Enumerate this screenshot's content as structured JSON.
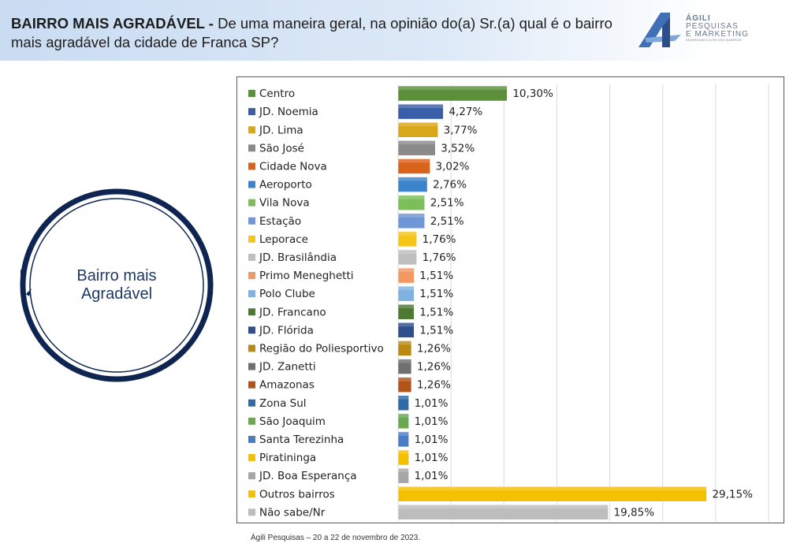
{
  "header": {
    "title_bold": "BAIRRO MAIS AGRADÁVEL -",
    "title_rest": "De uma maneira geral, na opinião do(a) Sr.(a) qual é o bairro mais agradável da cidade de Franca SP?"
  },
  "logo": {
    "line1": "ÁGILI",
    "line2": "PESQUISAS",
    "line3": "E MARKETING",
    "tagline": "ENXERGANDO ALÉM DOS NÚMEROS"
  },
  "circle": {
    "label": "Bairro mais Agradável"
  },
  "footer": {
    "text": "Ágili Pesquisas – 20 a 22 de novembro de 2023."
  },
  "chart_data": {
    "type": "bar",
    "orientation": "horizontal",
    "title": "",
    "xlabel": "",
    "ylabel": "",
    "xlim": [
      0,
      35
    ],
    "grid": true,
    "legend_position": "left",
    "value_suffix": "%",
    "categories": [
      "Centro",
      "JD. Noemia",
      "JD. Lima",
      "São José",
      "Cidade Nova",
      "Aeroporto",
      "Vila Nova",
      "Estação",
      "Leporace",
      "JD. Brasilândia",
      "Primo Meneghetti",
      "Polo Clube",
      "JD. Francano",
      "JD. Flórida",
      "Região do Poliesportivo",
      "JD. Zanetti",
      "Amazonas",
      "Zona Sul",
      "São Joaquim",
      "Santa Terezinha",
      "Piratininga",
      "JD. Boa Esperança",
      "Outros bairros",
      "Não sabe/Nr"
    ],
    "values": [
      10.3,
      4.27,
      3.77,
      3.52,
      3.02,
      2.76,
      2.51,
      2.51,
      1.76,
      1.76,
      1.51,
      1.51,
      1.51,
      1.51,
      1.26,
      1.26,
      1.26,
      1.01,
      1.01,
      1.01,
      1.01,
      1.01,
      29.15,
      19.85
    ],
    "labels": [
      "10,30%",
      "4,27%",
      "3,77%",
      "3,52%",
      "3,02%",
      "2,76%",
      "2,51%",
      "2,51%",
      "1,76%",
      "1,76%",
      "1,51%",
      "1,51%",
      "1,51%",
      "1,51%",
      "1,26%",
      "1,26%",
      "1,26%",
      "1,01%",
      "1,01%",
      "1,01%",
      "1,01%",
      "1,01%",
      "29,15%",
      "19,85%"
    ],
    "colors": [
      "#5b8f3a",
      "#3a5fa8",
      "#d9a81a",
      "#8a8a8a",
      "#d9621c",
      "#3c84cc",
      "#7cbf5a",
      "#6f96d6",
      "#f5c518",
      "#bfbfbf",
      "#f39862",
      "#7fb2e0",
      "#4c7a32",
      "#2f4f8c",
      "#b88a12",
      "#707070",
      "#b2531a",
      "#2e6aa8",
      "#6aa84f",
      "#4a7cc7",
      "#f5c000",
      "#a6a6a6",
      "#f5c000",
      "#bdbdbd"
    ]
  }
}
